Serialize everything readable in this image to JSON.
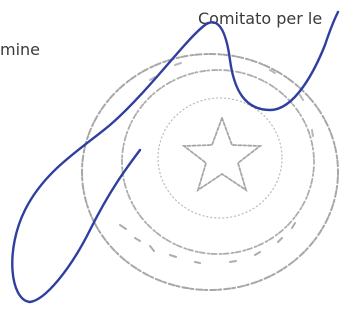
{
  "document": {
    "header_line": "Comitato per le",
    "second_line": "mine"
  }
}
